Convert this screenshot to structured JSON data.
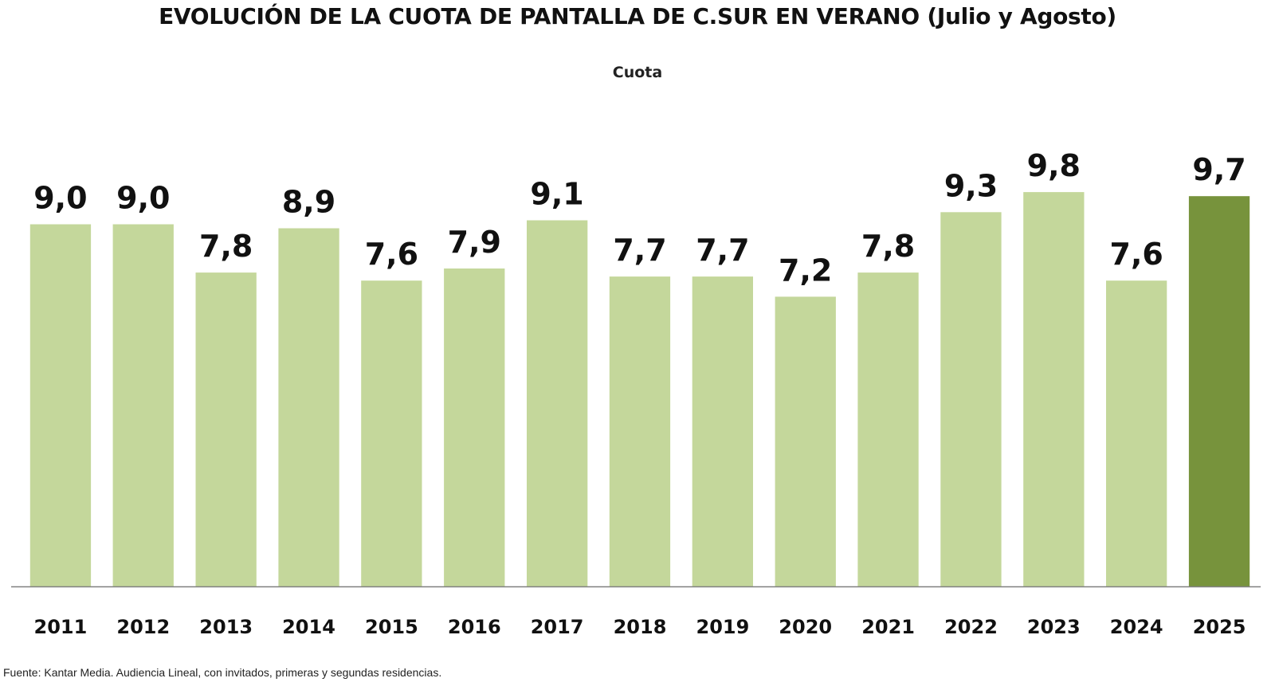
{
  "chart_data": {
    "type": "bar",
    "title": "EVOLUCIÓN DE LA CUOTA DE PANTALLA DE C.SUR EN VERANO (Julio y Agosto)",
    "subtitle": "Cuota",
    "categories": [
      "2011",
      "2012",
      "2013",
      "2014",
      "2015",
      "2016",
      "2017",
      "2018",
      "2019",
      "2020",
      "2021",
      "2022",
      "2023",
      "2024",
      "2025"
    ],
    "values": [
      9.0,
      9.0,
      7.8,
      8.9,
      7.6,
      7.9,
      9.1,
      7.7,
      7.7,
      7.2,
      7.8,
      9.3,
      9.8,
      7.6,
      9.7
    ],
    "value_labels": [
      "9,0",
      "9,0",
      "7,8",
      "8,9",
      "7,6",
      "7,9",
      "9,1",
      "7,7",
      "7,7",
      "7,2",
      "7,8",
      "9,3",
      "9,8",
      "7,6",
      "9,7"
    ],
    "ylim": [
      0,
      10
    ],
    "grid": false,
    "legend": "none",
    "colors": {
      "bar": "#c4d79b",
      "highlight_bar": "#77933c",
      "axis": "#808080"
    },
    "highlight_category": "2025"
  },
  "footer": {
    "source": "Fuente: Kantar Media. Audiencia Lineal, con invitados, primeras y segundas residencias."
  }
}
